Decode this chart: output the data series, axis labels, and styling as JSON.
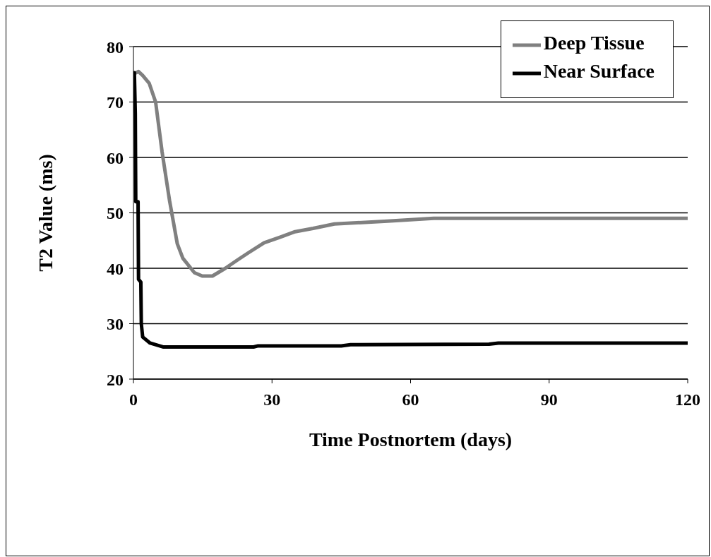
{
  "chart_data": {
    "type": "line",
    "xlabel": "Time Postnortem (days)",
    "ylabel": "T2 Value (ms)",
    "xlim": [
      0,
      120
    ],
    "xticks": [
      0,
      30,
      60,
      90,
      120
    ],
    "ylim": [
      20,
      80
    ],
    "yticks": [
      20,
      30,
      40,
      50,
      60,
      70,
      80
    ],
    "grid": "y",
    "legend": "top right",
    "marker": "none",
    "line_style": "solid",
    "series": [
      {
        "name": "Deep Tissue",
        "color": "#808080",
        "x": [
          0.6,
          1.1,
          2,
          3.4,
          4.8,
          6.2,
          7.8,
          9.5,
          10.7,
          13.2,
          14.9,
          17.1,
          19.9,
          22.7,
          24.9,
          28.3,
          31.7,
          35,
          38.9,
          43.5,
          55,
          65,
          90,
          120
        ],
        "values": [
          75.3,
          75.5,
          74.8,
          73.4,
          70,
          61,
          52.3,
          44.4,
          41.8,
          39.2,
          38.6,
          38.6,
          40,
          41.6,
          42.8,
          44.6,
          45.6,
          46.6,
          47.2,
          48,
          48.5,
          49,
          49,
          49
        ]
      },
      {
        "name": "Near Surface",
        "color": "#000000",
        "x": [
          0.2,
          0.4,
          0.5,
          1,
          1.1,
          1.6,
          1.7,
          2,
          3.6,
          6.4,
          26,
          27,
          45,
          47,
          77,
          79,
          120
        ],
        "values": [
          75.3,
          68,
          52,
          52,
          38,
          37.5,
          30,
          27.6,
          26.5,
          25.8,
          25.8,
          26,
          26,
          26.2,
          26.3,
          26.5,
          26.5
        ]
      }
    ]
  }
}
